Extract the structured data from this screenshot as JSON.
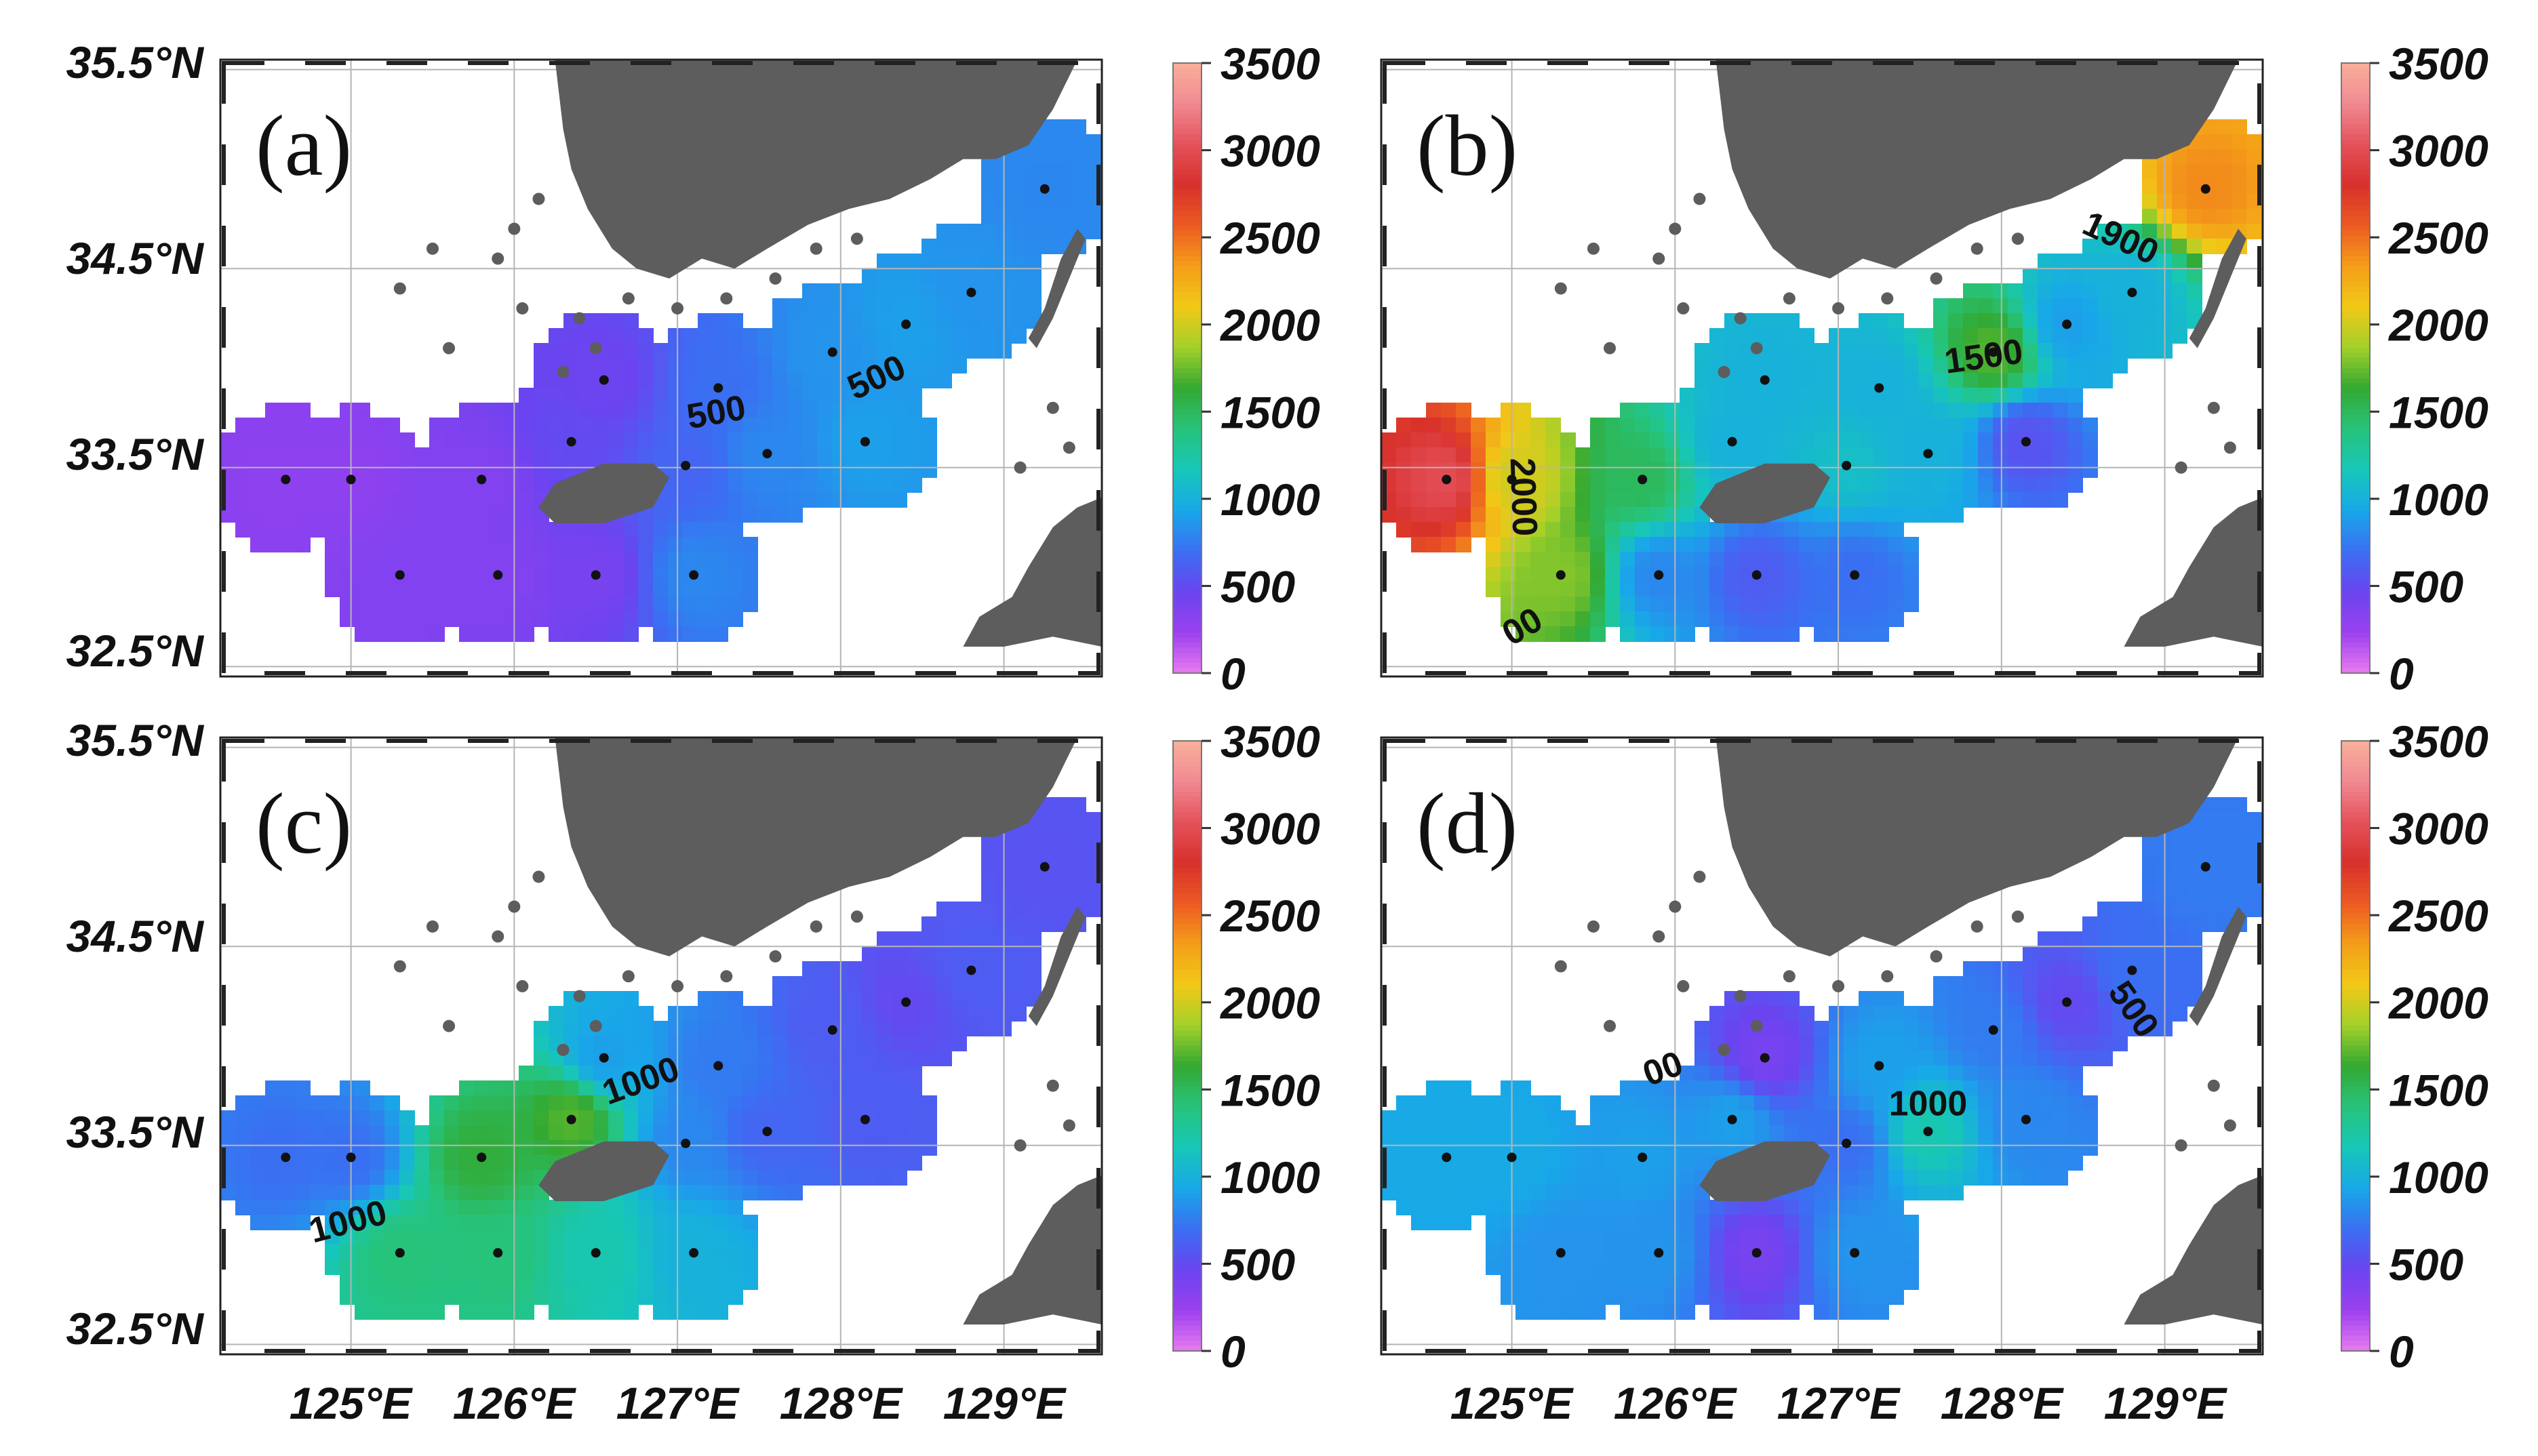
{
  "figure": {
    "lat_ticks": [
      "35.5°N",
      "34.5°N",
      "33.5°N",
      "32.5°N"
    ],
    "lon_ticks": [
      "125°E",
      "126°E",
      "127°E",
      "128°E",
      "129°E"
    ],
    "colorbar_ticks": [
      "3500",
      "3000",
      "2500",
      "2000",
      "1500",
      "1000",
      "500",
      "0"
    ],
    "colorbar_range": [
      0,
      3500
    ],
    "colormap": [
      "#e87bf0",
      "#9b40ee",
      "#6a44f0",
      "#3a6ff2",
      "#18a8e8",
      "#17c7b8",
      "#27c37a",
      "#33a932",
      "#a3d02a",
      "#f2c917",
      "#f49e19",
      "#ec5a22",
      "#d7302c",
      "#e4515a",
      "#f08a92",
      "#f8b09a"
    ],
    "map_colors": {
      "land": "#5d5d5d",
      "ocean": "#ffffff",
      "grid": "#b5b5b5",
      "station": "#111111",
      "contour": "#333333"
    },
    "lon_range": [
      124.2,
      129.6
    ],
    "lat_range": [
      32.45,
      35.55
    ],
    "stations": [
      [
        124.6,
        33.44
      ],
      [
        125.0,
        33.44
      ],
      [
        125.8,
        33.44
      ],
      [
        125.3,
        32.96
      ],
      [
        125.9,
        32.96
      ],
      [
        126.5,
        32.96
      ],
      [
        127.1,
        32.96
      ],
      [
        126.35,
        33.63
      ],
      [
        126.55,
        33.94
      ],
      [
        127.05,
        33.51
      ],
      [
        127.25,
        33.9
      ],
      [
        127.55,
        33.57
      ],
      [
        127.95,
        34.08
      ],
      [
        128.15,
        33.63
      ],
      [
        128.4,
        34.22
      ],
      [
        128.8,
        34.38
      ],
      [
        129.25,
        34.9
      ]
    ],
    "panels": [
      {
        "label": "(a)",
        "values": [
          300,
          300,
          350,
          350,
          350,
          400,
          800,
          500,
          450,
          650,
          700,
          800,
          850,
          900,
          900,
          850,
          800
        ],
        "contour_labels": [
          {
            "text": "500",
            "lon": 127.25,
            "lat": 33.72,
            "rot": -10
          },
          {
            "text": "500",
            "lon": 128.25,
            "lat": 33.9,
            "rot": -25
          }
        ]
      },
      {
        "label": "(b)",
        "values": [
          3000,
          2000,
          1500,
          1800,
          800,
          600,
          700,
          1000,
          1000,
          1100,
          1000,
          1000,
          1700,
          550,
          900,
          1000,
          2400
        ],
        "contour_labels": [
          {
            "text": "2000",
            "lon": 125.0,
            "lat": 33.35,
            "rot": 88
          },
          {
            "text": "00",
            "lon": 125.1,
            "lat": 32.65,
            "rot": -30
          },
          {
            "text": "1500",
            "lon": 127.9,
            "lat": 34.0,
            "rot": -8
          },
          {
            "text": "1900",
            "lon": 128.7,
            "lat": 34.6,
            "rot": 25
          }
        ]
      },
      {
        "label": "(c)",
        "values": [
          700,
          700,
          1600,
          1400,
          1400,
          1200,
          1000,
          1700,
          900,
          800,
          750,
          650,
          600,
          600,
          500,
          600,
          550
        ],
        "contour_labels": [
          {
            "text": "1000",
            "lon": 126.8,
            "lat": 33.77,
            "rot": -20
          },
          {
            "text": "1000",
            "lon": 125.0,
            "lat": 33.06,
            "rot": -15
          }
        ]
      },
      {
        "label": "(d)",
        "values": [
          950,
          950,
          900,
          850,
          850,
          400,
          850,
          900,
          400,
          700,
          900,
          1200,
          750,
          800,
          500,
          700,
          750
        ],
        "contour_labels": [
          {
            "text": "00",
            "lon": 125.95,
            "lat": 33.83,
            "rot": -20
          },
          {
            "text": "1000",
            "lon": 127.55,
            "lat": 33.65,
            "rot": 0
          },
          {
            "text": "500",
            "lon": 128.75,
            "lat": 34.15,
            "rot": 55
          }
        ]
      }
    ]
  }
}
